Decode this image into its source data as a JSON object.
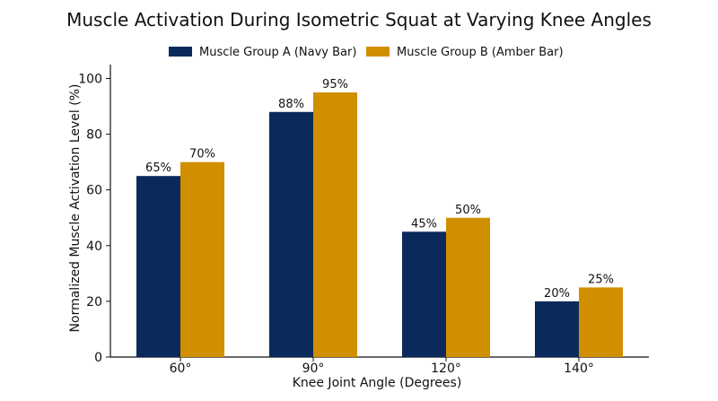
{
  "chart_data": {
    "type": "bar",
    "title": "Muscle Activation During Isometric Squat at Varying Knee Angles",
    "xlabel": "Knee Joint Angle (Degrees)",
    "ylabel": "Normalized Muscle Activation Level (%)",
    "categories": [
      "60°",
      "90°",
      "120°",
      "140°"
    ],
    "series": [
      {
        "name": "Muscle Group A (Navy Bar)",
        "color": "#0b2a5b",
        "values": [
          65,
          88,
          45,
          20
        ],
        "labels": [
          "65%",
          "88%",
          "45%",
          "20%"
        ]
      },
      {
        "name": "Muscle Group B (Amber Bar)",
        "color": "#d18f00",
        "values": [
          70,
          95,
          50,
          25
        ],
        "labels": [
          "70%",
          "95%",
          "50%",
          "25%"
        ]
      }
    ],
    "ylim": [
      0,
      105
    ],
    "yticks": [
      0,
      20,
      40,
      60,
      80,
      100
    ],
    "grid": false,
    "legend_position": "top-center"
  }
}
